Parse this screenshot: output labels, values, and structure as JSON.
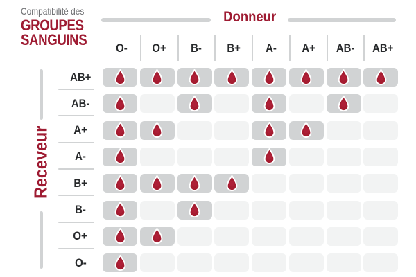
{
  "title": {
    "subtext": "Compatibilité des",
    "line1": "GROUPES",
    "line2": "SANGUINS"
  },
  "axes": {
    "donor": "Donneur",
    "receiver": "Receveur"
  },
  "chart_data": {
    "type": "heatmap",
    "title": "Compatibilité des GROUPES SANGUINS",
    "x_axis_label": "Donneur",
    "y_axis_label": "Receveur",
    "x_categories": [
      "O-",
      "O+",
      "B-",
      "B+",
      "A-",
      "A+",
      "AB-",
      "AB+"
    ],
    "y_categories": [
      "AB+",
      "AB-",
      "A+",
      "A-",
      "B+",
      "B-",
      "O+",
      "O-"
    ],
    "values": [
      [
        1,
        1,
        1,
        1,
        1,
        1,
        1,
        1
      ],
      [
        1,
        0,
        1,
        0,
        1,
        0,
        1,
        0
      ],
      [
        1,
        1,
        0,
        0,
        1,
        1,
        0,
        0
      ],
      [
        1,
        0,
        0,
        0,
        1,
        0,
        0,
        0
      ],
      [
        1,
        1,
        1,
        1,
        0,
        0,
        0,
        0
      ],
      [
        1,
        0,
        1,
        0,
        0,
        0,
        0,
        0
      ],
      [
        1,
        1,
        0,
        0,
        0,
        0,
        0,
        0
      ],
      [
        1,
        0,
        0,
        0,
        0,
        0,
        0,
        0
      ]
    ],
    "value_meaning": {
      "1": "compatible — blood drop shown",
      "0": "not compatible — empty cell"
    },
    "legend_position": "none",
    "grid": false
  },
  "icons": {
    "drop": "blood-drop-icon"
  },
  "colors": {
    "brand_red": "#9e1b32",
    "drop_red": "#a51c30",
    "drop_highlight": "#bb2340",
    "filled_cell": "#d1d3d4",
    "empty_cell": "#f2f3f3",
    "separator": "#d1d3d4",
    "axis_bar": "#d1d3d4",
    "label_text": "#27292b",
    "subtitle_gray": "#6d6e71"
  }
}
